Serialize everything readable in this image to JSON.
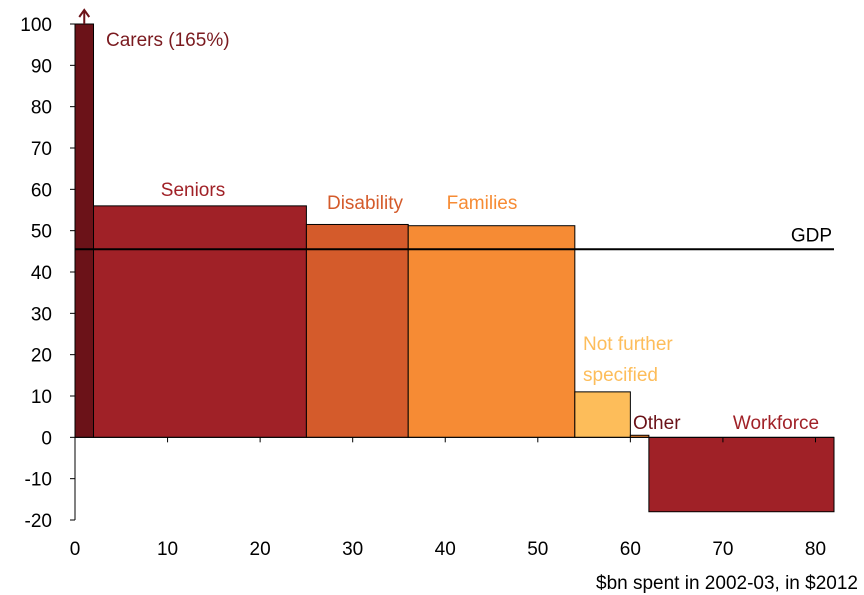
{
  "chart_data": {
    "type": "bar",
    "variant": "variable-width",
    "xlabel": "$bn spent in 2002-03, in $2012",
    "ylabel": "",
    "xlim": [
      0,
      82
    ],
    "ylim": [
      -20,
      100
    ],
    "xticks": [
      0,
      10,
      20,
      30,
      40,
      50,
      60,
      70,
      80
    ],
    "yticks": [
      -20,
      -10,
      0,
      10,
      20,
      30,
      40,
      50,
      60,
      70,
      80,
      90,
      100
    ],
    "grid": false,
    "series": [
      {
        "label": "Carers (165%)",
        "x_start": 0,
        "x_end": 2,
        "value": 165,
        "color": "#6b1218",
        "label_color": "#7a1a1f",
        "truncated": true
      },
      {
        "label": "Seniors",
        "x_start": 2,
        "x_end": 25,
        "value": 56,
        "color": "#a02127",
        "label_color": "#a02127"
      },
      {
        "label": "Disability",
        "x_start": 25,
        "x_end": 36,
        "value": 51.5,
        "color": "#d45b2b",
        "label_color": "#d45b2b"
      },
      {
        "label": "Families",
        "x_start": 36,
        "x_end": 54,
        "value": 51.2,
        "color": "#f68b34",
        "label_color": "#f68b34"
      },
      {
        "label": "Not further specified",
        "x_start": 54,
        "x_end": 60,
        "value": 11,
        "color": "#fdbd5a",
        "label_color": "#fdbd5a"
      },
      {
        "label": "Other",
        "x_start": 60,
        "x_end": 62,
        "value": 0.5,
        "color": "#f68b34",
        "label_color": "#6b1218"
      },
      {
        "label": "Workforce",
        "x_start": 62,
        "x_end": 82,
        "value": -18,
        "color": "#a02127",
        "label_color": "#a02127"
      }
    ],
    "reference_line": {
      "label": "GDP",
      "value": 45.5,
      "color": "#000000"
    },
    "colors": {
      "axis": "#000000",
      "text": "#000000",
      "bar_edge": "#000000"
    }
  }
}
